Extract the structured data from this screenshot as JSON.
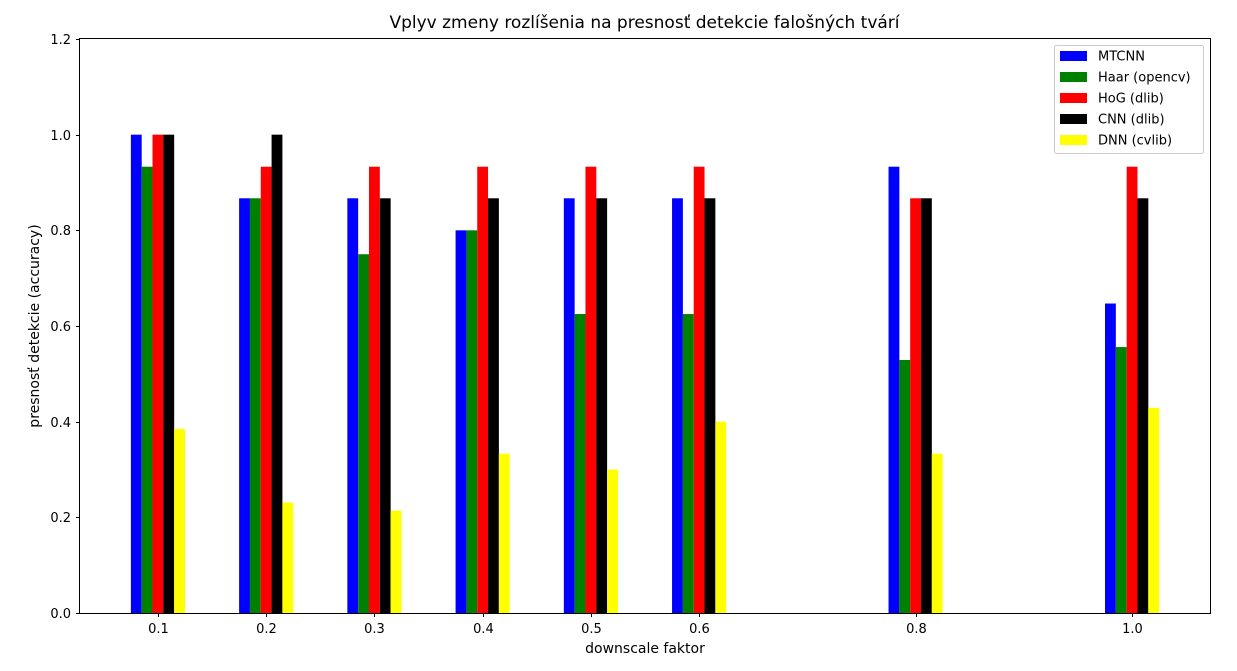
{
  "chart_data": {
    "type": "bar",
    "title": "Vplyv zmeny rozlíšenia na presnosť detekcie falošných tvárí",
    "xlabel": "downscale faktor",
    "ylabel": "presnosť detekcie (accuracy)",
    "x": [
      0.1,
      0.2,
      0.3,
      0.4,
      0.5,
      0.6,
      0.8,
      1.0
    ],
    "x_tick_labels": [
      "0.1",
      "0.2",
      "0.3",
      "0.4",
      "0.5",
      "0.6",
      "0.8",
      "1.0"
    ],
    "xlim": [
      0.028,
      1.072
    ],
    "ylim": [
      0,
      1.2
    ],
    "y_ticks": [
      0.0,
      0.2,
      0.4,
      0.6,
      0.8,
      1.0,
      1.2
    ],
    "y_tick_labels": [
      "0.0",
      "0.2",
      "0.4",
      "0.6",
      "0.8",
      "1.0",
      "1.2"
    ],
    "grid": false,
    "legend_position": "top-right",
    "series": [
      {
        "name": "MTCNN",
        "color": "#0000ff",
        "values": [
          1.0,
          0.867,
          0.867,
          0.8,
          0.867,
          0.867,
          0.933,
          0.647
        ]
      },
      {
        "name": "Haar (opencv)",
        "color": "#008000",
        "values": [
          0.933,
          0.867,
          0.75,
          0.8,
          0.625,
          0.625,
          0.529,
          0.556
        ]
      },
      {
        "name": "HoG (dlib)",
        "color": "#ff0000",
        "values": [
          1.0,
          0.933,
          0.933,
          0.933,
          0.933,
          0.933,
          0.867,
          0.933
        ]
      },
      {
        "name": "CNN (dlib)",
        "color": "#000000",
        "values": [
          1.0,
          1.0,
          0.867,
          0.867,
          0.867,
          0.867,
          0.867,
          0.867
        ]
      },
      {
        "name": "DNN (cvlib)",
        "color": "#ffff00",
        "values": [
          0.385,
          0.231,
          0.214,
          0.333,
          0.3,
          0.4,
          0.333,
          0.429
        ]
      }
    ]
  }
}
